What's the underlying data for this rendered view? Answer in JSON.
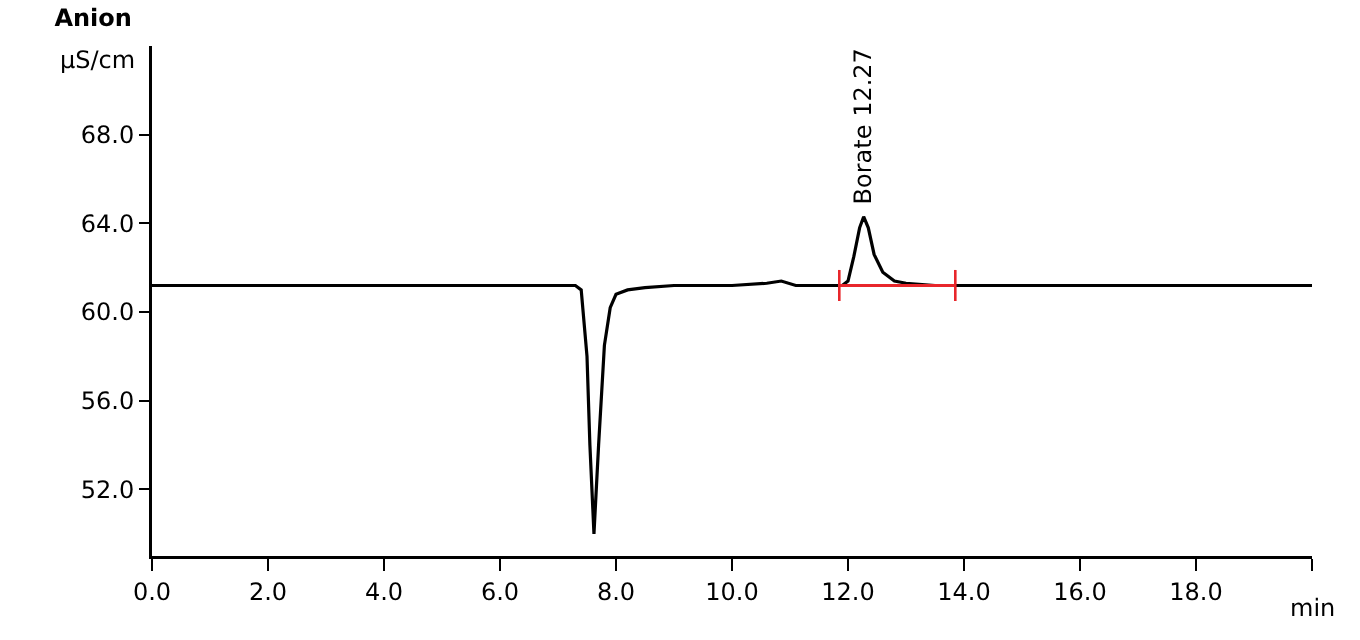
{
  "chart_data": {
    "type": "line",
    "title": "Anion",
    "ylabel": "µS/cm",
    "xlabel": "min",
    "xlim": [
      0,
      20
    ],
    "ylim": [
      49,
      72
    ],
    "xticks": [
      {
        "value": 0,
        "label": "0.0"
      },
      {
        "value": 2,
        "label": "2.0"
      },
      {
        "value": 4,
        "label": "4.0"
      },
      {
        "value": 6,
        "label": "6.0"
      },
      {
        "value": 8,
        "label": "8.0"
      },
      {
        "value": 10,
        "label": "10.0"
      },
      {
        "value": 12,
        "label": "12.0"
      },
      {
        "value": 14,
        "label": "14.0"
      },
      {
        "value": 16,
        "label": "16.0"
      },
      {
        "value": 18,
        "label": "18.0"
      },
      {
        "value": 20,
        "label": null
      }
    ],
    "yticks": [
      {
        "value": 52,
        "label": "52.0"
      },
      {
        "value": 56,
        "label": "56.0"
      },
      {
        "value": 60,
        "label": "60.0"
      },
      {
        "value": 64,
        "label": "64.0"
      },
      {
        "value": 68,
        "label": "68.0"
      }
    ],
    "grid": false,
    "marker": "none",
    "line_style": "solid",
    "series": [
      {
        "color": "#000000",
        "x": [
          0,
          7.3,
          7.4,
          7.5,
          7.55,
          7.62,
          7.7,
          7.8,
          7.9,
          8.0,
          8.2,
          8.5,
          9.0,
          10.0,
          10.6,
          10.85,
          11.1,
          11.9,
          12.0,
          12.1,
          12.2,
          12.27,
          12.35,
          12.45,
          12.6,
          12.8,
          13.0,
          13.5,
          14,
          20
        ],
        "values": [
          61.2,
          61.2,
          61.0,
          58,
          54,
          50.0,
          54,
          58.5,
          60.2,
          60.8,
          61.0,
          61.1,
          61.2,
          61.2,
          61.3,
          61.4,
          61.2,
          61.2,
          61.4,
          62.5,
          63.8,
          64.3,
          63.8,
          62.6,
          61.8,
          61.4,
          61.3,
          61.2,
          61.2,
          61.2
        ]
      },
      {
        "color": "#e8262b",
        "x": [
          11.85,
          13.85
        ],
        "values": [
          61.2,
          61.2
        ],
        "errors": [
          0.7,
          0.7
        ]
      }
    ],
    "annotations": [
      {
        "text": "Borate 12.27",
        "x": 12.27,
        "y": 64.3
      }
    ]
  }
}
